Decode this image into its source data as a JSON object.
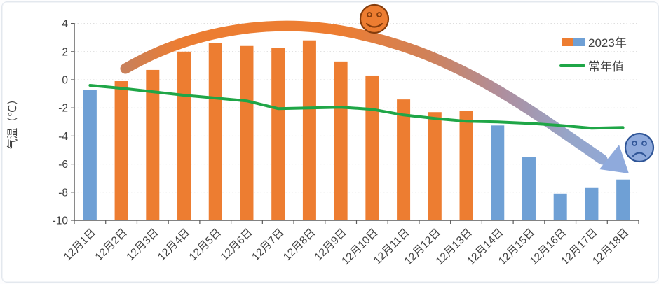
{
  "chart_data": {
    "type": "bar+line",
    "title": "",
    "ylabel": "气温（℃）",
    "xlabel": "",
    "ylim": [
      -10,
      4
    ],
    "yticks": [
      4,
      2,
      0,
      -2,
      -4,
      -6,
      -8,
      -10
    ],
    "bar_baseline": -10,
    "grid": true,
    "legend_position": "top-right",
    "categories": [
      "12月1日",
      "12月2日",
      "12月3日",
      "12月4日",
      "12月5日",
      "12月6日",
      "12月7日",
      "12月8日",
      "12月9日",
      "12月10日",
      "12月11日",
      "12月12日",
      "12月13日",
      "12月14日",
      "12月15日",
      "12月16日",
      "12月17日",
      "12月18日"
    ],
    "series": [
      {
        "name": "2023年",
        "type": "bar",
        "values": [
          -0.7,
          -0.1,
          0.7,
          2.0,
          2.6,
          2.4,
          2.25,
          2.8,
          1.3,
          0.3,
          -1.4,
          -2.3,
          -2.2,
          -3.25,
          -5.5,
          -8.1,
          -7.7,
          -7.1
        ],
        "bar_colors": [
          "#6FA0D5",
          "#ED7D31",
          "#ED7D31",
          "#ED7D31",
          "#ED7D31",
          "#ED7D31",
          "#ED7D31",
          "#ED7D31",
          "#ED7D31",
          "#ED7D31",
          "#ED7D31",
          "#ED7D31",
          "#ED7D31",
          "#6FA0D5",
          "#6FA0D5",
          "#6FA0D5",
          "#6FA0D5",
          "#6FA0D5"
        ]
      },
      {
        "name": "常年值",
        "type": "line",
        "color": "#1FA647",
        "values": [
          -0.4,
          -0.6,
          -0.85,
          -1.1,
          -1.3,
          -1.5,
          -2.05,
          -2.0,
          -1.95,
          -2.1,
          -2.5,
          -2.75,
          -2.95,
          -3.0,
          -3.1,
          -3.25,
          -3.45,
          -3.4
        ]
      }
    ],
    "legend": {
      "entries": [
        {
          "label": "2023年",
          "swatches": [
            "#ED7D31",
            "#6FA0D5"
          ]
        },
        {
          "label": "常年值",
          "line_color": "#1FA647"
        }
      ]
    },
    "annotations": {
      "happy_face": {
        "fill": "#ED7D31",
        "outline": "#843C0C"
      },
      "sad_face": {
        "fill": "#8FAADC",
        "outline": "#2F5597"
      },
      "trend_arrow": {
        "head_color": "#8FAADC",
        "gradient_stops": [
          {
            "o": 0.0,
            "c": "#C9805A"
          },
          {
            "o": 0.1,
            "c": "#EB7D33"
          },
          {
            "o": 0.42,
            "c": "#ED7D31"
          },
          {
            "o": 0.6,
            "c": "#D08159"
          },
          {
            "o": 0.75,
            "c": "#AE8F9F"
          },
          {
            "o": 0.88,
            "c": "#96A5C9"
          },
          {
            "o": 1.0,
            "c": "#8FAADC"
          }
        ]
      }
    },
    "colors": {
      "axis": "#595959",
      "grid": "#D9D9D9",
      "tick_label": "#404040",
      "legend_text": "#404040"
    }
  }
}
